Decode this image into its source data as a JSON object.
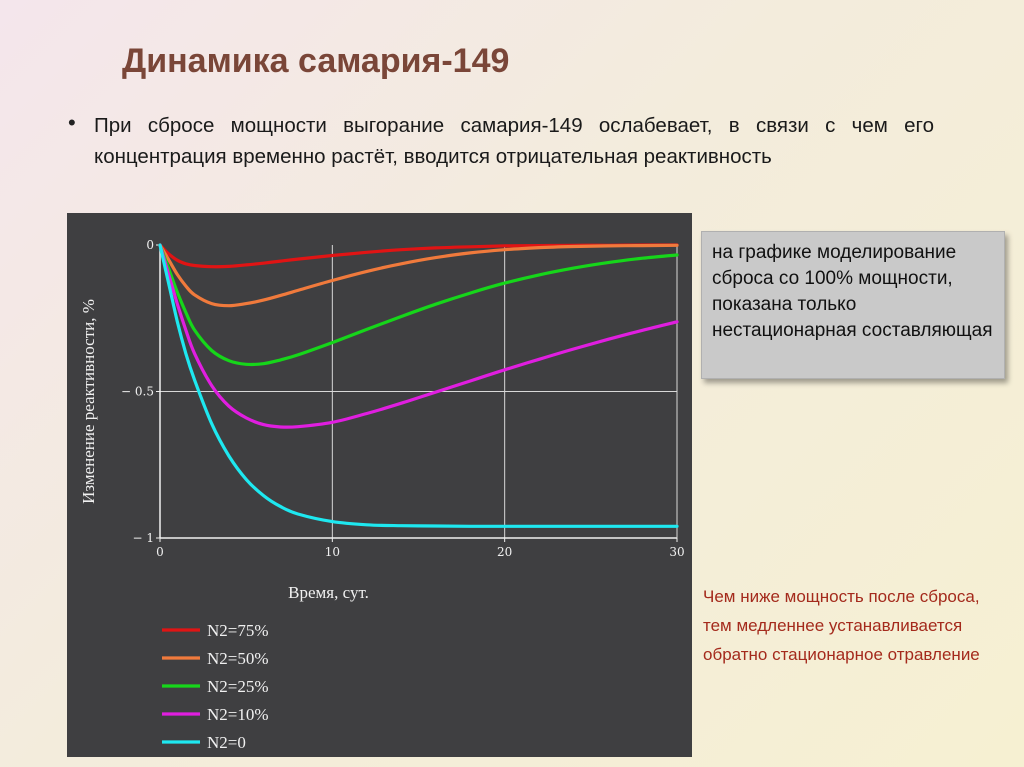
{
  "slide": {
    "title": "Динамика самария-149",
    "bullet": "При сбросе мощности выгорание самария-149 ослабевает, в связи с чем его концентрация временно растёт, вводится отрицательная реактивность",
    "note_box": "на графике моделирование сброса со 100% мощности, показана только нестационарная составляющая",
    "note_red": "Чем ниже мощность после сброса, тем медленнее устанавливается обратно стационарное отравление"
  },
  "colors": {
    "panel": "#3f3f41",
    "title": "#7a4638",
    "note_red": "#a42a1c"
  },
  "chart_data": {
    "type": "line",
    "xlabel": "Время, сут.",
    "ylabel": "Изменение реактивности, %",
    "xlim": [
      0,
      30
    ],
    "ylim": [
      -1,
      0
    ],
    "xticks": [
      "0",
      "10",
      "20",
      "30"
    ],
    "yticks": [
      "0",
      "− 0.5",
      "− 1"
    ],
    "ytick_values": [
      0,
      -0.5,
      -1
    ],
    "grid": true,
    "legend_position": "bottom-left",
    "x": [
      0,
      0.5,
      1,
      1.5,
      2,
      3,
      4,
      5,
      6,
      7,
      8,
      10,
      12,
      14,
      16,
      18,
      20,
      22,
      24,
      26,
      28,
      30
    ],
    "series": [
      {
        "name": "N2=75%",
        "color": "#e01414",
        "values": [
          0,
          -0.03,
          -0.052,
          -0.064,
          -0.07,
          -0.074,
          -0.073,
          -0.068,
          -0.062,
          -0.055,
          -0.048,
          -0.036,
          -0.025,
          -0.016,
          -0.01,
          -0.006,
          -0.003,
          -0.002,
          -0.001,
          -0.001,
          0,
          0
        ]
      },
      {
        "name": "N2=50%",
        "color": "#f07a3c",
        "values": [
          0,
          -0.05,
          -0.1,
          -0.14,
          -0.17,
          -0.2,
          -0.207,
          -0.2,
          -0.188,
          -0.172,
          -0.155,
          -0.121,
          -0.09,
          -0.064,
          -0.043,
          -0.027,
          -0.016,
          -0.009,
          -0.005,
          -0.003,
          -0.002,
          -0.001
        ]
      },
      {
        "name": "N2=25%",
        "color": "#16d61a",
        "values": [
          0,
          -0.08,
          -0.16,
          -0.23,
          -0.29,
          -0.36,
          -0.395,
          -0.407,
          -0.405,
          -0.392,
          -0.375,
          -0.333,
          -0.288,
          -0.244,
          -0.202,
          -0.164,
          -0.13,
          -0.102,
          -0.079,
          -0.06,
          -0.045,
          -0.034
        ]
      },
      {
        "name": "N2=10%",
        "color": "#e01ee0",
        "values": [
          0,
          -0.1,
          -0.2,
          -0.29,
          -0.37,
          -0.48,
          -0.55,
          -0.59,
          -0.613,
          -0.621,
          -0.62,
          -0.605,
          -0.575,
          -0.54,
          -0.502,
          -0.464,
          -0.426,
          -0.39,
          -0.355,
          -0.322,
          -0.291,
          -0.262
        ]
      },
      {
        "name": "N2=0",
        "color": "#1ee8f0",
        "values": [
          0,
          -0.13,
          -0.26,
          -0.37,
          -0.46,
          -0.61,
          -0.72,
          -0.8,
          -0.855,
          -0.893,
          -0.918,
          -0.944,
          -0.955,
          -0.958,
          -0.959,
          -0.96,
          -0.96,
          -0.96,
          -0.96,
          -0.96,
          -0.96,
          -0.96
        ]
      }
    ]
  }
}
